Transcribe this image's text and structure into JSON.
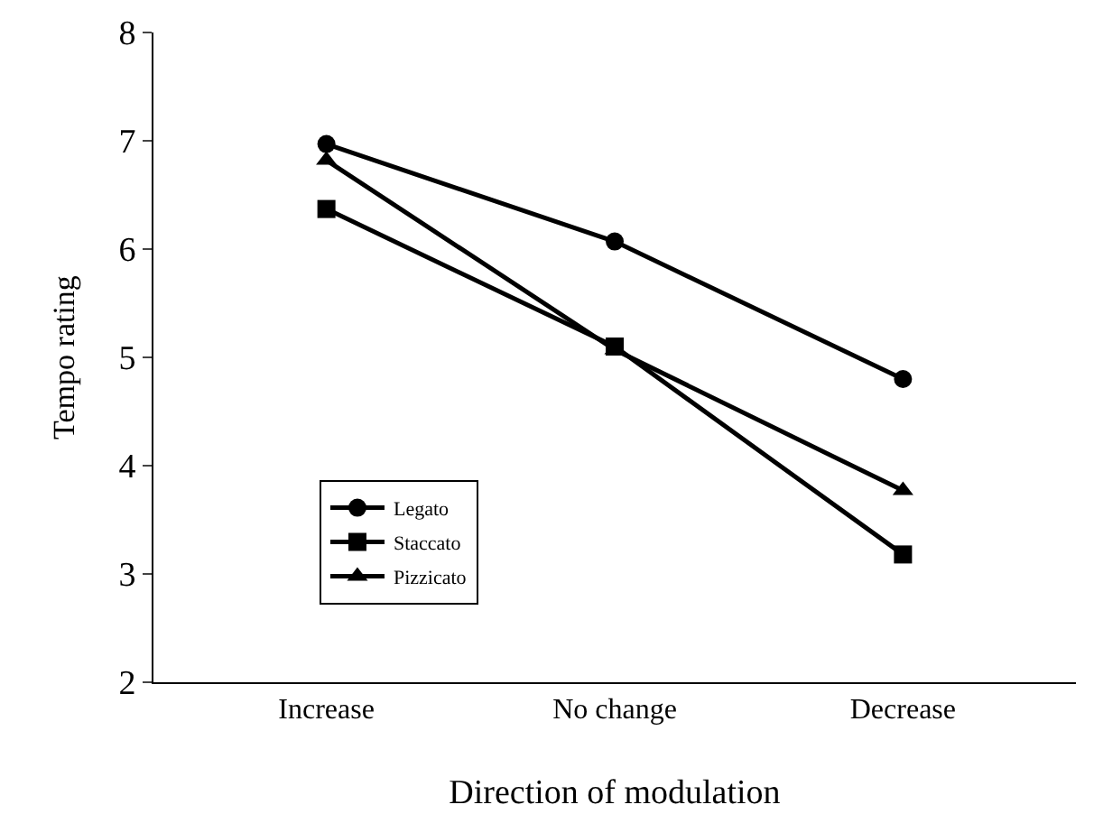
{
  "chart_data": {
    "type": "line",
    "xlabel": "Direction of modulation",
    "ylabel": "Tempo rating",
    "categories": [
      "Increase",
      "No change",
      "Decrease"
    ],
    "series": [
      {
        "name": "Legato",
        "color": "#000000",
        "marker": "circle",
        "values": [
          6.97,
          6.07,
          4.8
        ]
      },
      {
        "name": "Staccato",
        "color": "#000000",
        "marker": "square",
        "values": [
          6.37,
          5.1,
          3.18
        ]
      },
      {
        "name": "Pizzicato",
        "color": "#000000",
        "marker": "triangle",
        "values": [
          6.82,
          5.07,
          3.77
        ]
      }
    ],
    "ylim": [
      2,
      8
    ],
    "yticks": [
      2,
      3,
      4,
      5,
      6,
      7,
      8
    ],
    "grid": false,
    "legend": "bottom left",
    "line_style": "solid"
  }
}
